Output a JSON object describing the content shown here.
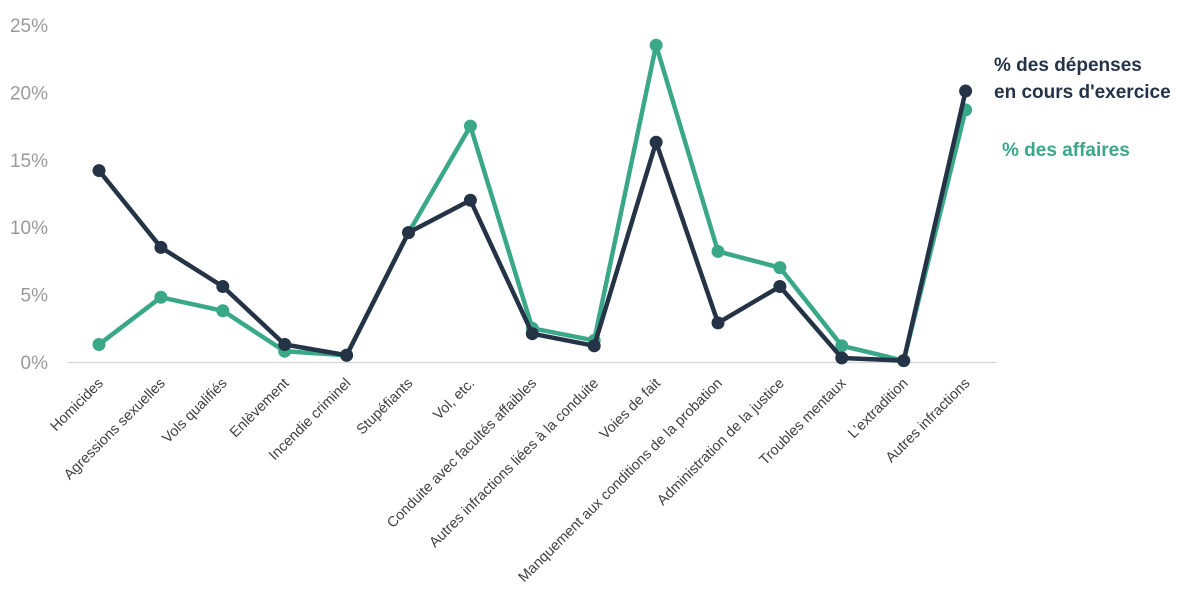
{
  "chart_data": {
    "type": "line",
    "categories": [
      "Homicides",
      "Agressions sexuelles",
      "Vols qualifiés",
      "Enlèvement",
      "Incendie criminel",
      "Stupéfiants",
      "Vol, etc.",
      "Conduite avec facultés affaibles",
      "Autres infractions liées à la conduite",
      "Voies de fait",
      "Manquement aux conditions de la probation",
      "Administration de la justice",
      "Troubles mentaux",
      "L'extradition",
      "Autres infractions"
    ],
    "series": [
      {
        "name": "% des dépenses en cours d'exercice",
        "name_lines": [
          "% des dépenses",
          "en cours d'exercice"
        ],
        "color": "#253347",
        "values": [
          14.2,
          8.5,
          5.6,
          1.3,
          0.5,
          9.6,
          12.0,
          2.1,
          1.2,
          16.3,
          2.9,
          5.6,
          0.3,
          0.1,
          20.1
        ]
      },
      {
        "name": "% des affaires",
        "name_lines": [
          "% des affaires"
        ],
        "color": "#3aa888",
        "values": [
          1.3,
          4.8,
          3.8,
          0.8,
          0.5,
          9.6,
          17.5,
          2.5,
          1.6,
          23.5,
          8.2,
          7.0,
          1.2,
          0.1,
          18.7
        ]
      }
    ],
    "y_ticks": [
      "0%",
      "5%",
      "10%",
      "15%",
      "20%",
      "25%"
    ],
    "y_tick_values": [
      0,
      5,
      10,
      15,
      20,
      25
    ],
    "ylim": [
      0,
      25
    ],
    "legend_position": "right",
    "grid": false
  }
}
